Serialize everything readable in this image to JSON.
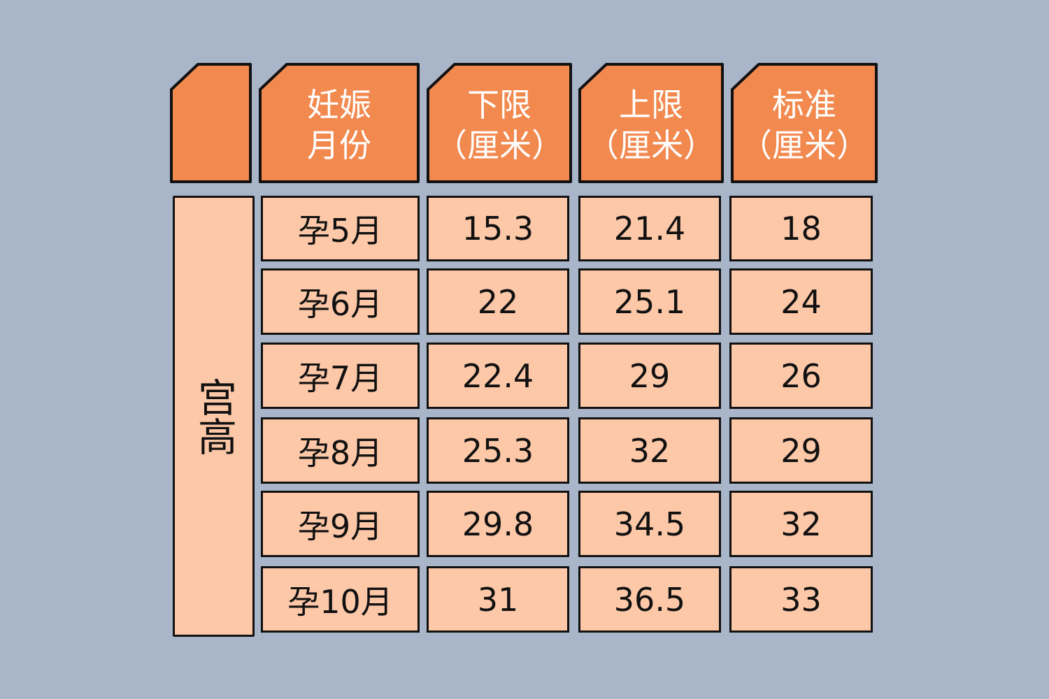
{
  "colors": {
    "background": "#a9b5c8",
    "header": "#f28a50",
    "cell": "#fdc8a8",
    "border": "#111111"
  },
  "chart_data": {
    "type": "table",
    "row_group_label": "宫高",
    "columns": [
      "",
      "妊娠\n月份",
      "下限\n（厘米）",
      "上限\n（厘米）",
      "标准\n（厘米）"
    ],
    "rows": [
      [
        "孕5月",
        "15.3",
        "21.4",
        "18"
      ],
      [
        "孕6月",
        "22",
        "25.1",
        "24"
      ],
      [
        "孕7月",
        "22.4",
        "29",
        "26"
      ],
      [
        "孕8月",
        "25.3",
        "32",
        "29"
      ],
      [
        "孕9月",
        "29.8",
        "34.5",
        "32"
      ],
      [
        "孕10月",
        "31",
        "36.5",
        "33"
      ]
    ]
  }
}
